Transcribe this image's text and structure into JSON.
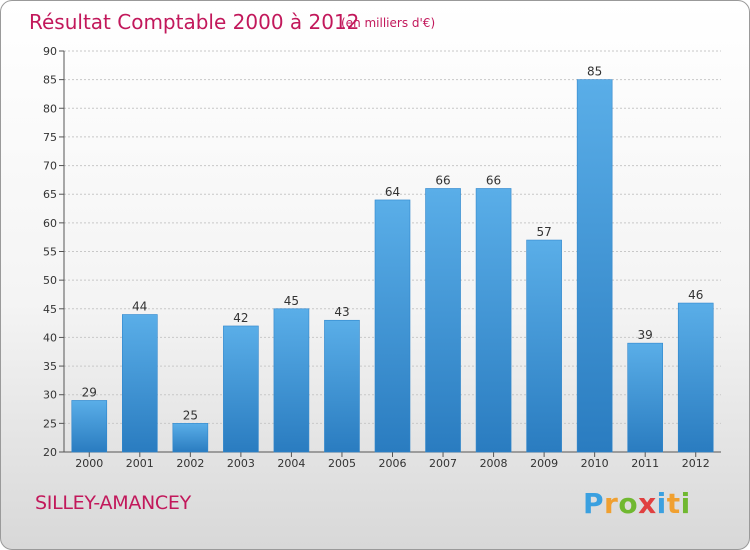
{
  "title": "Résultat Comptable 2000 à 2012",
  "subtitle": "(en milliers d'€)",
  "commune": "SILLEY-AMANCEY",
  "logo": {
    "text": "Proxiti",
    "letters": [
      {
        "char": "P",
        "color": "#3aa0e0"
      },
      {
        "char": "r",
        "color": "#f0a030"
      },
      {
        "char": "o",
        "color": "#70b830"
      },
      {
        "char": "x",
        "color": "#e04040"
      },
      {
        "char": "i",
        "color": "#3aa0e0"
      },
      {
        "char": "t",
        "color": "#f0a030"
      },
      {
        "char": "i",
        "color": "#70b830"
      }
    ]
  },
  "chart_data": {
    "type": "bar",
    "title": "Résultat Comptable 2000 à 2012",
    "subtitle": "(en milliers d'€)",
    "xlabel": "",
    "ylabel": "",
    "categories": [
      "2000",
      "2001",
      "2002",
      "2003",
      "2004",
      "2005",
      "2006",
      "2007",
      "2008",
      "2009",
      "2010",
      "2011",
      "2012"
    ],
    "values": [
      29,
      44,
      25,
      42,
      45,
      43,
      64,
      66,
      66,
      57,
      85,
      39,
      46
    ],
    "ylim": [
      20,
      90
    ],
    "yticks": [
      20,
      25,
      30,
      35,
      40,
      45,
      50,
      55,
      60,
      65,
      70,
      75,
      80,
      85,
      90
    ],
    "grid": true,
    "bar_color_top": "#5aaee8",
    "bar_color_bottom": "#2a7cc0"
  }
}
